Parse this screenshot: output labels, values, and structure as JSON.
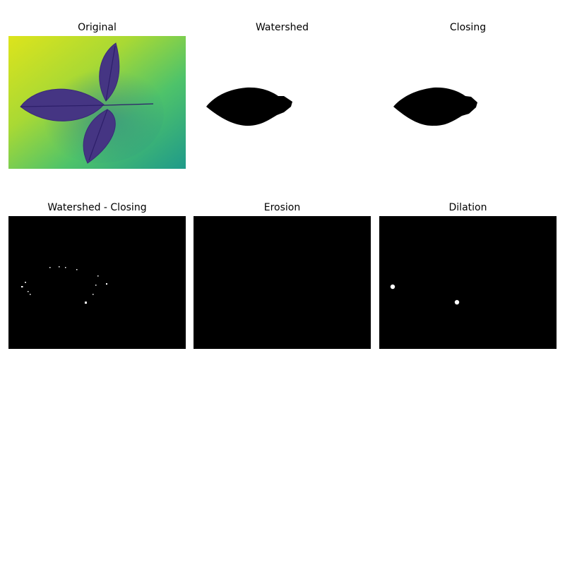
{
  "figure": {
    "panels": [
      {
        "title": "Original"
      },
      {
        "title": "Watershed"
      },
      {
        "title": "Closing"
      },
      {
        "title": "Watershed - Closing"
      },
      {
        "title": "Erosion"
      },
      {
        "title": "Dilation"
      }
    ]
  },
  "colors": {
    "background": "#ffffff",
    "mask_foreground": "#000000",
    "mask_background_dark": "#000000",
    "diff_pixels": "#ffffff",
    "viridis_high": "#d9e21a",
    "viridis_mid": "#23a983",
    "viridis_low": "#3b2c7e"
  }
}
